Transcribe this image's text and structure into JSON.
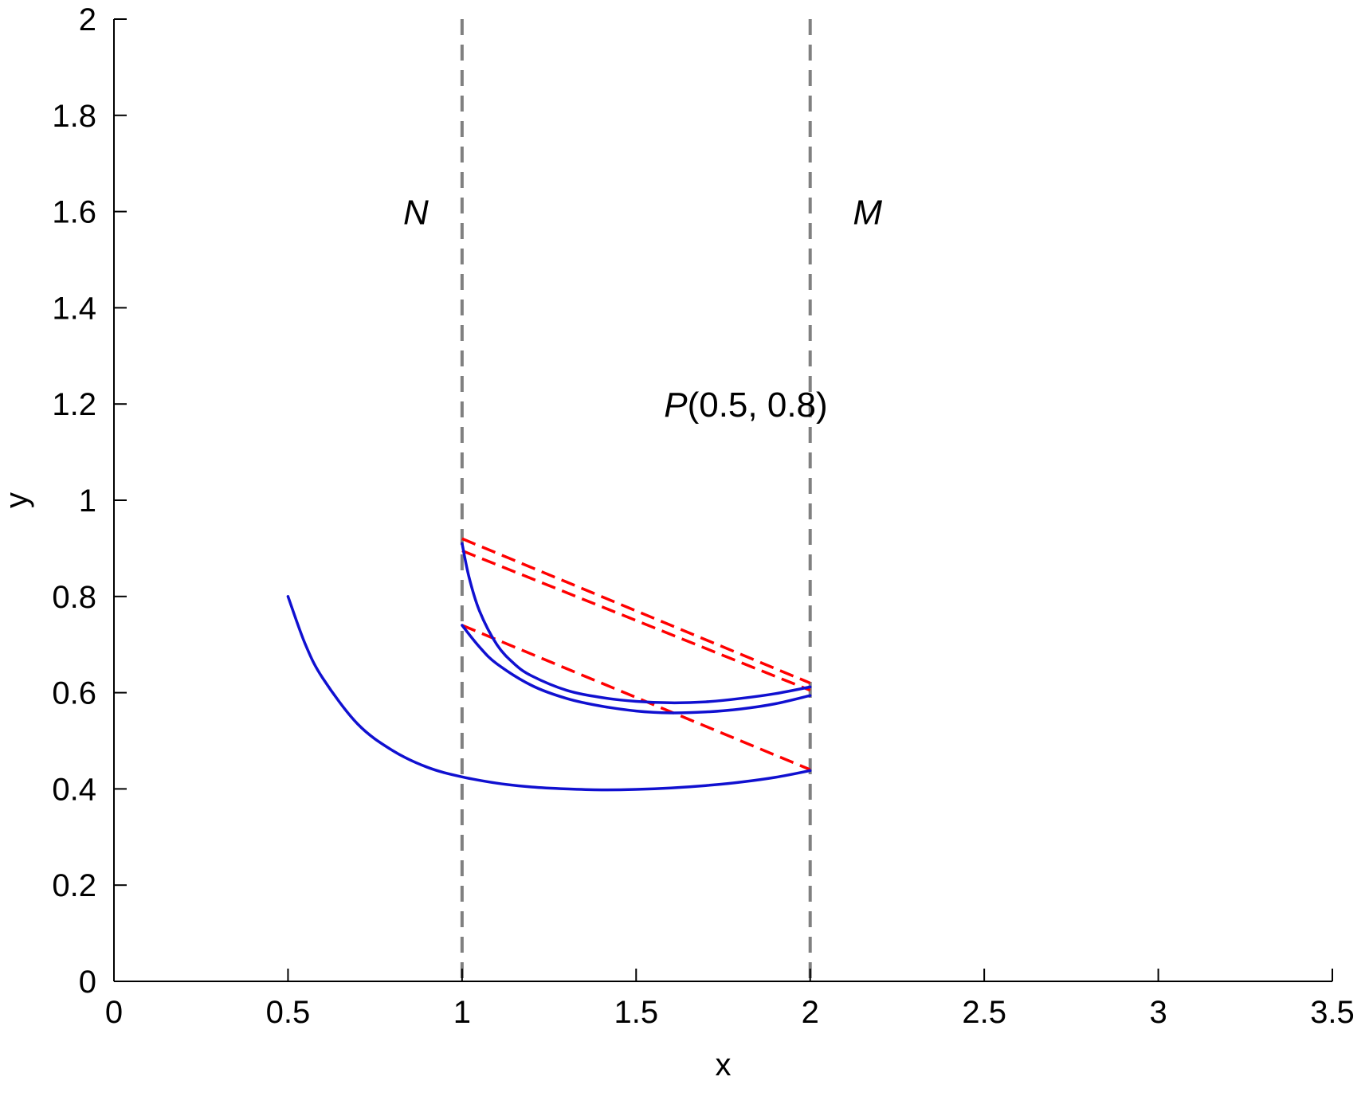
{
  "chart_data": {
    "type": "line",
    "title": "",
    "xlabel": "x",
    "ylabel": "y",
    "xlim": [
      0,
      3.5
    ],
    "ylim": [
      0,
      2
    ],
    "xticks": [
      "0",
      "0.5",
      "1",
      "1.5",
      "2",
      "2.5",
      "3",
      "3.5"
    ],
    "yticks": [
      "0",
      "0.2",
      "0.4",
      "0.6",
      "0.8",
      "1",
      "1.2",
      "1.4",
      "1.6",
      "1.8",
      "2"
    ],
    "grid": false,
    "colors": {
      "curve": "#1010d0",
      "chord": "#ff0000",
      "boundary": "#808080"
    },
    "boundaries": [
      {
        "label": "N",
        "x": 1
      },
      {
        "label": "M",
        "x": 2
      }
    ],
    "annotation": {
      "italic": "P",
      "text": "(0.5, 0.8)",
      "x": 1.58,
      "y": 1.2
    },
    "curves": [
      {
        "x": [
          0.5,
          0.55,
          0.6,
          0.7,
          0.8,
          0.9,
          1.0,
          1.1,
          1.2,
          1.3,
          1.4,
          1.5,
          1.6,
          1.7,
          1.8,
          1.9,
          2.0
        ],
        "y": [
          0.8,
          0.7,
          0.63,
          0.535,
          0.48,
          0.445,
          0.425,
          0.412,
          0.404,
          0.4,
          0.398,
          0.399,
          0.402,
          0.407,
          0.414,
          0.424,
          0.438
        ]
      },
      {
        "x": [
          1.0,
          1.05,
          1.1,
          1.2,
          1.3,
          1.4,
          1.5,
          1.6,
          1.7,
          1.8,
          1.9,
          2.0
        ],
        "y": [
          0.74,
          0.695,
          0.66,
          0.615,
          0.588,
          0.572,
          0.562,
          0.558,
          0.56,
          0.566,
          0.577,
          0.594
        ]
      },
      {
        "x": [
          1.0,
          1.02,
          1.05,
          1.1,
          1.15,
          1.2,
          1.3,
          1.4,
          1.5,
          1.6,
          1.7,
          1.8,
          1.9,
          2.0
        ],
        "y": [
          0.91,
          0.84,
          0.77,
          0.7,
          0.66,
          0.635,
          0.605,
          0.59,
          0.582,
          0.579,
          0.581,
          0.588,
          0.598,
          0.612
        ]
      }
    ],
    "chords": [
      {
        "x": [
          1.0,
          2.0
        ],
        "y": [
          0.92,
          0.62
        ]
      },
      {
        "x": [
          1.0,
          2.0
        ],
        "y": [
          0.895,
          0.605
        ]
      },
      {
        "x": [
          1.0,
          2.0
        ],
        "y": [
          0.74,
          0.44
        ]
      }
    ]
  }
}
